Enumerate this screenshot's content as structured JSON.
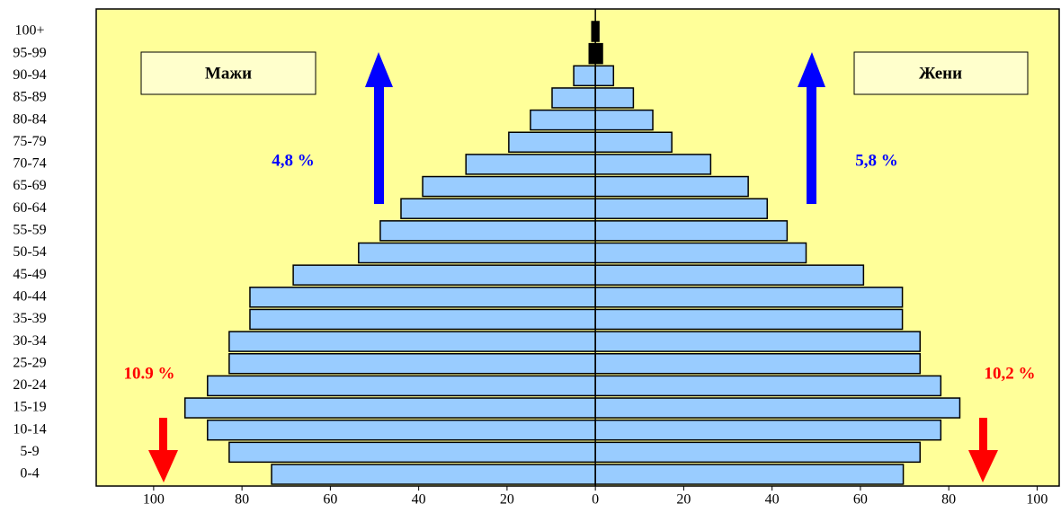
{
  "chart_data": {
    "type": "pyramid",
    "categories": [
      "0-4",
      "5-9",
      "10-14",
      "15-19",
      "20-24",
      "25-29",
      "30-34",
      "35-39",
      "40-44",
      "45-49",
      "50-54",
      "55-59",
      "60-64",
      "65-69",
      "70-74",
      "75-79",
      "80-84",
      "85-89",
      "90-94",
      "95-99",
      "100+"
    ],
    "series": [
      {
        "name": "Мажи",
        "side": "left",
        "color": "#99ccff",
        "values": [
          73.3,
          82.9,
          87.8,
          92.9,
          87.8,
          82.9,
          82.9,
          78.2,
          78.2,
          68.4,
          53.6,
          48.7,
          44.0,
          39.1,
          29.3,
          19.6,
          14.7,
          9.8,
          4.9,
          1.4,
          0.8
        ],
        "colors": [
          "#99ccff",
          "#99ccff",
          "#99ccff",
          "#99ccff",
          "#99ccff",
          "#99ccff",
          "#99ccff",
          "#99ccff",
          "#99ccff",
          "#99ccff",
          "#99ccff",
          "#99ccff",
          "#99ccff",
          "#99ccff",
          "#99ccff",
          "#99ccff",
          "#99ccff",
          "#99ccff",
          "#99ccff",
          "#000000",
          "#000000"
        ]
      },
      {
        "name": "Жени",
        "side": "right",
        "color": "#99ccff",
        "values": [
          69.7,
          73.5,
          78.2,
          82.5,
          78.2,
          73.5,
          73.5,
          69.5,
          69.5,
          60.7,
          47.7,
          43.4,
          38.9,
          34.6,
          26.1,
          17.3,
          13.0,
          8.6,
          4.1,
          1.6,
          0.8
        ],
        "colors": [
          "#99ccff",
          "#99ccff",
          "#99ccff",
          "#99ccff",
          "#99ccff",
          "#99ccff",
          "#99ccff",
          "#99ccff",
          "#99ccff",
          "#99ccff",
          "#99ccff",
          "#99ccff",
          "#99ccff",
          "#99ccff",
          "#99ccff",
          "#99ccff",
          "#99ccff",
          "#99ccff",
          "#99ccff",
          "#000000",
          "#000000"
        ]
      }
    ],
    "xlim": [
      -113,
      105
    ],
    "xticks": [
      {
        "value": -100,
        "label": "100"
      },
      {
        "value": -80,
        "label": "80"
      },
      {
        "value": -60,
        "label": "60"
      },
      {
        "value": -40,
        "label": "40"
      },
      {
        "value": -20,
        "label": "20"
      },
      0,
      20,
      40,
      60,
      80,
      100
    ],
    "annotations": [
      {
        "text": "4,8 %",
        "color": "#0000ff"
      },
      {
        "text": "5,8 %",
        "color": "#0000ff"
      },
      {
        "text": "10.9 %",
        "color": "#ff0000"
      },
      {
        "text": "10,2 %",
        "color": "#ff0000"
      }
    ],
    "background": "#ffff99"
  }
}
